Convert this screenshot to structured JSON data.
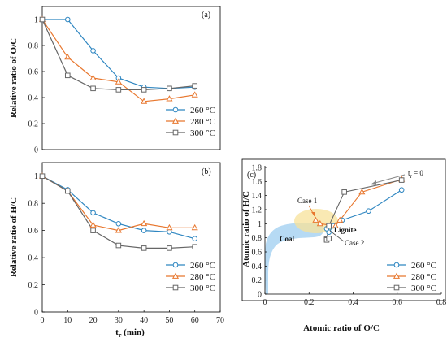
{
  "colors": {
    "s260": "#2E86C1",
    "s280": "#E8772E",
    "s300": "#666666",
    "coal": "#A9D4F2",
    "lignite": "#F7E29A",
    "lignite_text": "#E02020"
  },
  "chart_data": [
    {
      "type": "line",
      "panel": "(a)",
      "ylabel": "Relative ratio of O/C",
      "x": [
        0,
        10,
        20,
        30,
        40,
        50,
        60
      ],
      "xlim": [
        0,
        70
      ],
      "ylim": [
        0,
        1.1
      ],
      "yticks": [
        "0",
        "0.2",
        "0.4",
        "0.6",
        "0.8",
        "1"
      ],
      "grid": false,
      "legend": "bottom-right",
      "series": [
        {
          "name": "260 °C",
          "marker": "circle",
          "values": [
            1.0,
            1.0,
            0.76,
            0.55,
            0.48,
            0.47,
            0.48
          ]
        },
        {
          "name": "280 °C",
          "marker": "triangle",
          "values": [
            1.0,
            0.71,
            0.55,
            0.52,
            0.37,
            0.39,
            0.42
          ]
        },
        {
          "name": "300 °C",
          "marker": "square",
          "values": [
            1.0,
            0.57,
            0.47,
            0.46,
            0.46,
            0.47,
            0.49
          ]
        }
      ]
    },
    {
      "type": "line",
      "panel": "(b)",
      "ylabel": "Relative ratio of H/C",
      "xlabel_main": "t",
      "xlabel_sub": "r",
      "xlabel_unit": " (min)",
      "x": [
        0,
        10,
        20,
        30,
        40,
        50,
        60
      ],
      "xlim": [
        0,
        70
      ],
      "xticks": [
        "0",
        "10",
        "20",
        "30",
        "40",
        "50",
        "60",
        "70"
      ],
      "ylim": [
        0,
        1.1
      ],
      "yticks": [
        "0",
        "0.2",
        "0.4",
        "0.6",
        "0.8",
        "1"
      ],
      "grid": false,
      "legend": "bottom-right",
      "series": [
        {
          "name": "260 °C",
          "marker": "circle",
          "values": [
            1.0,
            0.9,
            0.73,
            0.65,
            0.6,
            0.59,
            0.54
          ]
        },
        {
          "name": "280 °C",
          "marker": "triangle",
          "values": [
            1.0,
            0.89,
            0.64,
            0.6,
            0.65,
            0.62,
            0.62
          ]
        },
        {
          "name": "300 °C",
          "marker": "square",
          "values": [
            1.0,
            0.89,
            0.6,
            0.49,
            0.47,
            0.47,
            0.48
          ]
        }
      ]
    },
    {
      "type": "scatter",
      "panel": "(c)",
      "xlabel": "Atomic ratio of O/C",
      "ylabel": "Atomic ratio of H/C",
      "xlim": [
        0,
        0.8
      ],
      "ylim": [
        0,
        1.8
      ],
      "xticks": [
        "0",
        "0.2",
        "0.4",
        "0.6",
        "0.8"
      ],
      "yticks": [
        "0",
        "0.2",
        "0.4",
        "0.6",
        "0.8",
        "1",
        "1.2",
        "1.4",
        "1.6",
        "1.8"
      ],
      "grid": false,
      "legend": "bottom-right",
      "series": [
        {
          "name": "260 °C",
          "marker": "circle",
          "points": [
            [
              0.62,
              1.48
            ],
            [
              0.47,
              1.18
            ],
            [
              0.35,
              1.05
            ],
            [
              0.31,
              0.97
            ],
            [
              0.29,
              0.88
            ],
            [
              0.28,
              0.93
            ]
          ]
        },
        {
          "name": "280 °C",
          "marker": "triangle",
          "points": [
            [
              0.62,
              1.63
            ],
            [
              0.44,
              1.45
            ],
            [
              0.34,
              1.05
            ],
            [
              0.32,
              0.97
            ],
            [
              0.25,
              1.0
            ],
            [
              0.23,
              1.05
            ]
          ]
        },
        {
          "name": "300 °C",
          "marker": "square",
          "points": [
            [
              0.62,
              1.62
            ],
            [
              0.36,
              1.45
            ],
            [
              0.29,
              0.97
            ],
            [
              0.28,
              0.78
            ],
            [
              0.28,
              0.77
            ],
            [
              0.29,
              0.79
            ]
          ]
        }
      ],
      "annotations": {
        "tr0_main": "t",
        "tr0_sub": "r",
        "tr0_rest": " = 0",
        "case1": "Case 1",
        "case2": "Case 2",
        "coal": "Coal",
        "lignite": "Lignite"
      }
    }
  ]
}
